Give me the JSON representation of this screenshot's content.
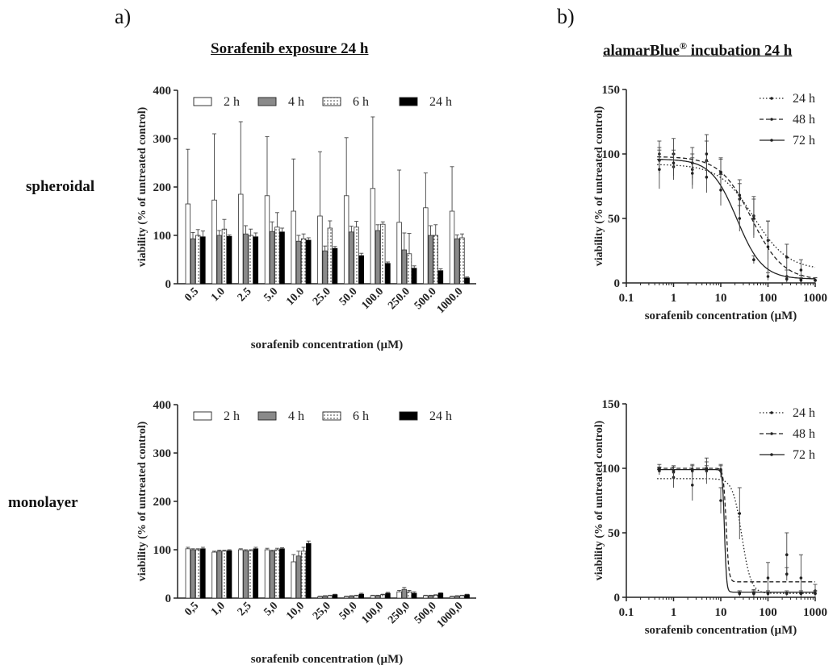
{
  "panel_labels": {
    "a": "a)",
    "b": "b)"
  },
  "headings": {
    "a": "Sorafenib exposure 24 h",
    "b_main": "alamarBlue",
    "b_mark": "®",
    "b_rest": " incubation 24 h"
  },
  "row_labels": {
    "top": "spheroidal",
    "bottom": "monolayer"
  },
  "chart_data": [
    {
      "id": "a-spheroidal",
      "type": "bar",
      "ylabel": "viability (% of untreated control)",
      "xlabel": "sorafenib concentration (µM)",
      "ylim": [
        0,
        400
      ],
      "yticks": [
        0,
        100,
        200,
        300,
        400
      ],
      "legend_position": "top",
      "categories": [
        "0.5",
        "1.0",
        "2.5",
        "5.0",
        "10.0",
        "25.0",
        "50.0",
        "100.0",
        "250.0",
        "500.0",
        "1000.0"
      ],
      "series": [
        {
          "name": "2 h",
          "style": "white",
          "values": [
            165,
            173,
            185,
            182,
            150,
            140,
            182,
            197,
            127,
            157,
            150
          ],
          "errors": [
            113,
            137,
            150,
            122,
            108,
            133,
            120,
            148,
            108,
            72,
            92
          ]
        },
        {
          "name": "4 h",
          "style": "gray",
          "values": [
            93,
            100,
            103,
            108,
            88,
            68,
            107,
            110,
            70,
            100,
            93
          ],
          "errors": [
            13,
            10,
            17,
            20,
            12,
            10,
            12,
            12,
            35,
            20,
            8
          ]
        },
        {
          "name": "6 h",
          "style": "dotted",
          "values": [
            100,
            113,
            100,
            117,
            93,
            115,
            117,
            123,
            62,
            100,
            95
          ],
          "errors": [
            12,
            20,
            13,
            30,
            10,
            15,
            12,
            5,
            42,
            22,
            8
          ]
        },
        {
          "name": "24 h",
          "style": "black",
          "values": [
            97,
            98,
            97,
            107,
            90,
            73,
            58,
            42,
            32,
            27,
            12
          ],
          "errors": [
            12,
            3,
            8,
            8,
            5,
            4,
            5,
            3,
            5,
            4,
            2
          ]
        }
      ]
    },
    {
      "id": "a-monolayer",
      "type": "bar",
      "ylabel": "viability (% of untreated control)",
      "xlabel": "sorafenib concentration (µM)",
      "ylim": [
        0,
        400
      ],
      "yticks": [
        0,
        100,
        200,
        300,
        400
      ],
      "legend_position": "top",
      "categories": [
        "0,5",
        "1,0",
        "2,5",
        "5,0",
        "10,0",
        "25,0",
        "50,0",
        "100,0",
        "250,0",
        "500,0",
        "1000,0"
      ],
      "series": [
        {
          "name": "2 h",
          "style": "white",
          "values": [
            102,
            95,
            100,
            100,
            75,
            3,
            3,
            5,
            13,
            5,
            3
          ],
          "errors": [
            3,
            2,
            2,
            3,
            15,
            1,
            1,
            1,
            3,
            1,
            1
          ]
        },
        {
          "name": "4 h",
          "style": "gray",
          "values": [
            100,
            97,
            98,
            97,
            87,
            4,
            4,
            5,
            18,
            5,
            4
          ],
          "errors": [
            2,
            2,
            2,
            2,
            10,
            1,
            1,
            1,
            4,
            1,
            1
          ]
        },
        {
          "name": "6 h",
          "style": "dotted",
          "values": [
            100,
            97,
            98,
            100,
            97,
            5,
            5,
            7,
            13,
            6,
            5
          ],
          "errors": [
            2,
            2,
            2,
            3,
            8,
            1,
            1,
            1,
            3,
            1,
            1
          ]
        },
        {
          "name": "24 h",
          "style": "black",
          "values": [
            102,
            98,
            102,
            102,
            113,
            7,
            8,
            10,
            10,
            10,
            7
          ],
          "errors": [
            3,
            2,
            3,
            2,
            5,
            1,
            2,
            2,
            3,
            1,
            1
          ]
        }
      ]
    },
    {
      "id": "b-spheroidal",
      "type": "line",
      "xscale": "log",
      "ylabel": "viability (% of untreated control)",
      "xlabel": "sorafenib concentration (µM)",
      "ylim": [
        0,
        150
      ],
      "yticks": [
        0,
        50,
        100,
        150
      ],
      "xlim": [
        0.1,
        1000
      ],
      "xticks": [
        0.1,
        1,
        10,
        100,
        1000
      ],
      "xticklabels": [
        "0.1",
        "1",
        "10",
        "100",
        "1000"
      ],
      "legend_position": "top-right",
      "x": [
        0.5,
        1,
        2.5,
        5,
        10,
        25,
        50,
        100,
        250,
        500,
        1000
      ],
      "series": [
        {
          "name": "24 h",
          "dash": "dotted",
          "top": 92,
          "bottom": 10,
          "ic50": 50,
          "hill": 1.2,
          "points": [
            [
              0.5,
              95,
              10
            ],
            [
              1,
              90,
              10
            ],
            [
              2.5,
              88,
              12
            ],
            [
              5,
              95,
              15
            ],
            [
              10,
              85,
              12
            ],
            [
              25,
              65,
              12
            ],
            [
              50,
              52,
              15
            ],
            [
              100,
              33,
              15
            ],
            [
              250,
              20,
              10
            ],
            [
              500,
              10,
              8
            ],
            [
              1000,
              2,
              2
            ]
          ]
        },
        {
          "name": "48 h",
          "dash": "dashed",
          "top": 98,
          "bottom": 2,
          "ic50": 45,
          "hill": 1.3,
          "points": [
            [
              0.5,
              100,
              10
            ],
            [
              1,
              100,
              12
            ],
            [
              2.5,
              93,
              12
            ],
            [
              5,
              100,
              15
            ],
            [
              10,
              86,
              10
            ],
            [
              25,
              68,
              12
            ],
            [
              50,
              50,
              15
            ],
            [
              100,
              28,
              20
            ],
            [
              250,
              5,
              5
            ],
            [
              500,
              3,
              3
            ],
            [
              1000,
              2,
              2
            ]
          ]
        },
        {
          "name": "72 h",
          "dash": "solid",
          "top": 96,
          "bottom": 3,
          "ic50": 22,
          "hill": 1.6,
          "points": [
            [
              0.5,
              88,
              15
            ],
            [
              1,
              93,
              10
            ],
            [
              2.5,
              85,
              12
            ],
            [
              5,
              82,
              12
            ],
            [
              10,
              72,
              12
            ],
            [
              25,
              50,
              10
            ],
            [
              50,
              18,
              3
            ],
            [
              100,
              5,
              3
            ],
            [
              250,
              3,
              2
            ],
            [
              500,
              2,
              2
            ],
            [
              1000,
              2,
              2
            ]
          ]
        }
      ]
    },
    {
      "id": "b-monolayer",
      "type": "line",
      "xscale": "log",
      "ylabel": "viability (% of untreated control)",
      "xlabel": "sorafenib concentration (µM)",
      "ylim": [
        0,
        150
      ],
      "yticks": [
        0,
        50,
        100,
        150
      ],
      "xlim": [
        0.1,
        1000
      ],
      "xticks": [
        0.1,
        1,
        10,
        100,
        1000
      ],
      "xticklabels": [
        "0.1",
        "1",
        "10",
        "100",
        "1000"
      ],
      "legend_position": "top-right",
      "x": [
        0.5,
        1,
        2.5,
        5,
        10,
        25,
        50,
        100,
        250,
        500,
        1000
      ],
      "series": [
        {
          "name": "24 h",
          "dash": "dotted",
          "top": 92,
          "bottom": 3,
          "ic50": 28,
          "hill": 4.5,
          "points": [
            [
              0.5,
              98,
              3
            ],
            [
              1,
              93,
              8
            ],
            [
              2.5,
              87,
              12
            ],
            [
              5,
              98,
              10
            ],
            [
              10,
              75,
              10
            ],
            [
              25,
              65,
              20
            ],
            [
              50,
              3,
              3
            ],
            [
              100,
              15,
              12
            ],
            [
              250,
              33,
              17
            ],
            [
              500,
              15,
              18
            ],
            [
              1000,
              5,
              5
            ]
          ]
        },
        {
          "name": "48 h",
          "dash": "dashed",
          "top": 100,
          "bottom": 12,
          "ic50": 13,
          "hill": 15,
          "points": [
            [
              0.5,
              100,
              3
            ],
            [
              1,
              97,
              5
            ],
            [
              2.5,
              98,
              5
            ],
            [
              5,
              100,
              5
            ],
            [
              10,
              98,
              5
            ],
            [
              25,
              3,
              2
            ],
            [
              50,
              3,
              2
            ],
            [
              100,
              3,
              2
            ],
            [
              250,
              18,
              5
            ],
            [
              500,
              3,
              2
            ],
            [
              1000,
              3,
              2
            ]
          ]
        },
        {
          "name": "72 h",
          "dash": "solid",
          "top": 99,
          "bottom": 4,
          "ic50": 12,
          "hill": 20,
          "points": [
            [
              0.5,
              99,
              2
            ],
            [
              1,
              98,
              3
            ],
            [
              2.5,
              99,
              3
            ],
            [
              5,
              99,
              3
            ],
            [
              10,
              99,
              3
            ],
            [
              25,
              3,
              2
            ],
            [
              50,
              3,
              2
            ],
            [
              100,
              3,
              2
            ],
            [
              250,
              3,
              2
            ],
            [
              500,
              3,
              2
            ],
            [
              1000,
              3,
              2
            ]
          ]
        }
      ]
    }
  ]
}
